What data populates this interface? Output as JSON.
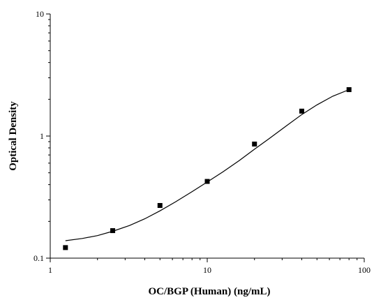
{
  "chart_data": {
    "type": "scatter",
    "xlabel": "OC/BGP (Human) (ng/mL)",
    "ylabel": "Optical Density",
    "x_scale": "log",
    "y_scale": "log",
    "xlim": [
      1,
      100
    ],
    "ylim": [
      0.1,
      10
    ],
    "x_ticks": [
      "1",
      "10",
      "100"
    ],
    "y_ticks": [
      "0.1",
      "1",
      "10"
    ],
    "grid": false,
    "legend": "none",
    "series": [
      {
        "kind": "points",
        "marker": "square",
        "color": "#000000",
        "x": [
          1.25,
          2.5,
          5,
          10,
          20,
          40,
          80
        ],
        "y": [
          0.122,
          0.168,
          0.27,
          0.425,
          0.86,
          1.6,
          2.4
        ]
      },
      {
        "kind": "fitted-curve",
        "color": "#000000",
        "x": [
          1.25,
          1.6,
          2.0,
          2.5,
          3.2,
          4.0,
          5.0,
          6.3,
          8.0,
          10.0,
          12.6,
          16.0,
          20.0,
          25.0,
          31.6,
          40.0,
          50.0,
          63.0,
          80.0
        ],
        "y": [
          0.139,
          0.145,
          0.153,
          0.166,
          0.185,
          0.21,
          0.244,
          0.29,
          0.35,
          0.42,
          0.51,
          0.63,
          0.78,
          0.96,
          1.2,
          1.5,
          1.8,
          2.12,
          2.4
        ]
      }
    ]
  }
}
